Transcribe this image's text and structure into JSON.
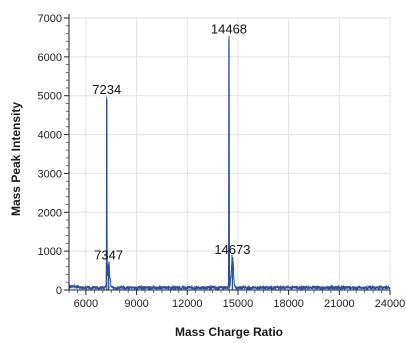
{
  "chart_data": {
    "type": "line",
    "title": "",
    "xlabel": "Mass Charge Ratio",
    "ylabel": "Mass Peak Intensity",
    "xlim": [
      5000,
      24000
    ],
    "ylim": [
      0,
      7000
    ],
    "x_ticks": [
      6000,
      9000,
      12000,
      15000,
      18000,
      21000,
      24000
    ],
    "y_ticks": [
      0,
      1000,
      2000,
      3000,
      4000,
      5000,
      6000,
      7000
    ],
    "grid": true,
    "legend": "none",
    "series": [
      {
        "color": "#2a4f9e",
        "peaks": [
          {
            "x": 7234,
            "y": 4900
          },
          {
            "x": 7347,
            "y": 650
          },
          {
            "x": 14468,
            "y": 6450
          },
          {
            "x": 14673,
            "y": 800
          }
        ],
        "baseline": 60
      }
    ],
    "annotations": [
      {
        "text": "7234",
        "x": 7234,
        "y": 5050
      },
      {
        "text": "7347",
        "x": 7347,
        "y": 780
      },
      {
        "text": "14468",
        "x": 14468,
        "y": 6600
      },
      {
        "text": "14673",
        "x": 14673,
        "y": 930
      }
    ]
  }
}
